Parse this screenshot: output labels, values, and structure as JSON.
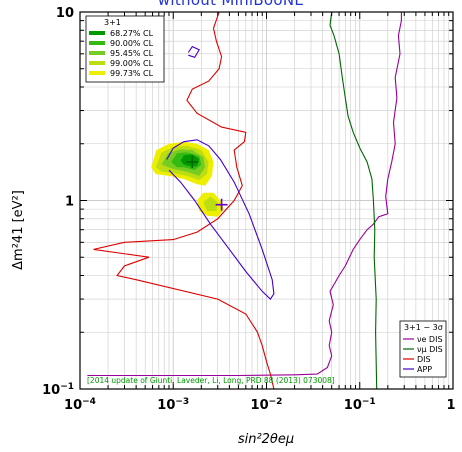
{
  "chart_data": {
    "type": "line",
    "title": "without MiniBooNE",
    "xlabel": "sin²2θeμ",
    "ylabel": "Δm²41 [eV²]",
    "x_scale": "log",
    "y_scale": "log",
    "xlim": [
      0.0001,
      1
    ],
    "ylim": [
      0.1,
      10
    ],
    "grid": true,
    "x_ticks": [
      {
        "value": 0.0001,
        "base": "10",
        "exp": "−4"
      },
      {
        "value": 0.001,
        "base": "10",
        "exp": "−3"
      },
      {
        "value": 0.01,
        "base": "10",
        "exp": "−2"
      },
      {
        "value": 0.1,
        "base": "10",
        "exp": "−1"
      },
      {
        "value": 1,
        "base": "1",
        "exp": ""
      }
    ],
    "y_ticks": [
      {
        "value": 0.1,
        "base": "10",
        "exp": "−1"
      },
      {
        "value": 1,
        "base": "1",
        "exp": ""
      },
      {
        "value": 10,
        "base": "10",
        "exp": ""
      }
    ],
    "fit_legend": {
      "title": "3+1",
      "placement": "top-left",
      "entries": [
        {
          "label": "68.27% CL",
          "color": "#009900"
        },
        {
          "label": "90.00% CL",
          "color": "#33bb11"
        },
        {
          "label": "95.45% CL",
          "color": "#77cc22"
        },
        {
          "label": "99.00% CL",
          "color": "#bbdd11"
        },
        {
          "label": "99.73% CL",
          "color": "#eeee00"
        }
      ]
    },
    "regions": [
      {
        "cl": "99.73% CL",
        "color": "#eeee00",
        "points": [
          [
            0.00058,
            1.5
          ],
          [
            0.00066,
            1.85
          ],
          [
            0.0009,
            2.0
          ],
          [
            0.0013,
            2.05
          ],
          [
            0.0018,
            2.0
          ],
          [
            0.0024,
            1.85
          ],
          [
            0.0027,
            1.6
          ],
          [
            0.0026,
            1.35
          ],
          [
            0.0022,
            1.2
          ],
          [
            0.0018,
            1.22
          ],
          [
            0.0013,
            1.3
          ],
          [
            0.0009,
            1.35
          ],
          [
            0.00065,
            1.38
          ]
        ]
      },
      {
        "cl": "99.73% CL",
        "color": "#eeee00",
        "points": [
          [
            0.0018,
            1.0
          ],
          [
            0.0021,
            1.1
          ],
          [
            0.0027,
            1.1
          ],
          [
            0.0032,
            1.0
          ],
          [
            0.0035,
            0.9
          ],
          [
            0.003,
            0.82
          ],
          [
            0.0023,
            0.83
          ],
          [
            0.0019,
            0.88
          ]
        ]
      },
      {
        "cl": "99.00% CL",
        "color": "#bbdd11",
        "points": [
          [
            0.00065,
            1.5
          ],
          [
            0.00075,
            1.8
          ],
          [
            0.001,
            1.92
          ],
          [
            0.0014,
            1.95
          ],
          [
            0.002,
            1.85
          ],
          [
            0.0024,
            1.6
          ],
          [
            0.0023,
            1.38
          ],
          [
            0.0019,
            1.28
          ],
          [
            0.0014,
            1.35
          ],
          [
            0.001,
            1.4
          ],
          [
            0.00075,
            1.42
          ]
        ]
      },
      {
        "cl": "99.00% CL",
        "color": "#bbdd11",
        "points": [
          [
            0.0021,
            0.98
          ],
          [
            0.0025,
            1.05
          ],
          [
            0.003,
            0.98
          ],
          [
            0.0029,
            0.88
          ],
          [
            0.0023,
            0.88
          ]
        ]
      },
      {
        "cl": "95.45% CL",
        "color": "#77cc22",
        "points": [
          [
            0.00075,
            1.55
          ],
          [
            0.00088,
            1.78
          ],
          [
            0.0012,
            1.87
          ],
          [
            0.0016,
            1.85
          ],
          [
            0.0021,
            1.7
          ],
          [
            0.0022,
            1.5
          ],
          [
            0.0019,
            1.35
          ],
          [
            0.0014,
            1.42
          ],
          [
            0.001,
            1.47
          ]
        ]
      },
      {
        "cl": "90.00% CL",
        "color": "#33bb11",
        "points": [
          [
            0.00095,
            1.6
          ],
          [
            0.0011,
            1.78
          ],
          [
            0.0014,
            1.8
          ],
          [
            0.0019,
            1.72
          ],
          [
            0.002,
            1.55
          ],
          [
            0.0017,
            1.45
          ],
          [
            0.0013,
            1.5
          ],
          [
            0.0011,
            1.5
          ]
        ]
      },
      {
        "cl": "68.27% CL",
        "color": "#009900",
        "points": [
          [
            0.0012,
            1.62
          ],
          [
            0.0013,
            1.74
          ],
          [
            0.0016,
            1.76
          ],
          [
            0.0019,
            1.66
          ],
          [
            0.0018,
            1.52
          ],
          [
            0.0015,
            1.52
          ],
          [
            0.0013,
            1.55
          ]
        ]
      }
    ],
    "best_fits": [
      {
        "x": 0.0016,
        "y": 1.6,
        "color": "#006600"
      },
      {
        "x": 0.0033,
        "y": 0.95,
        "color": "#6600cc"
      }
    ],
    "limit_legend": {
      "title": "3+1 − 3σ",
      "placement": "bottom-right",
      "entries": [
        {
          "label": "νe DIS",
          "color": "#990099"
        },
        {
          "label": "νμ DIS",
          "color": "#006600"
        },
        {
          "label": "DIS",
          "color": "#dd0000"
        },
        {
          "label": "APP",
          "color": "#4400cc"
        }
      ]
    },
    "series": [
      {
        "name": "νe DIS",
        "color": "#990099",
        "points": [
          [
            0.00012,
            0.118
          ],
          [
            0.001,
            0.118
          ],
          [
            0.005,
            0.118
          ],
          [
            0.02,
            0.119
          ],
          [
            0.035,
            0.12
          ],
          [
            0.045,
            0.13
          ],
          [
            0.05,
            0.15
          ],
          [
            0.047,
            0.17
          ],
          [
            0.05,
            0.2
          ],
          [
            0.047,
            0.23
          ],
          [
            0.052,
            0.28
          ],
          [
            0.048,
            0.33
          ],
          [
            0.055,
            0.37
          ],
          [
            0.06,
            0.4
          ],
          [
            0.07,
            0.45
          ],
          [
            0.085,
            0.55
          ],
          [
            0.1,
            0.62
          ],
          [
            0.12,
            0.7
          ],
          [
            0.14,
            0.75
          ],
          [
            0.16,
            0.82
          ],
          [
            0.2,
            0.85
          ],
          [
            0.19,
            1.05
          ],
          [
            0.2,
            1.3
          ],
          [
            0.22,
            1.6
          ],
          [
            0.24,
            2.0
          ],
          [
            0.23,
            2.6
          ],
          [
            0.25,
            3.5
          ],
          [
            0.24,
            4.5
          ],
          [
            0.27,
            6.0
          ],
          [
            0.26,
            7.5
          ],
          [
            0.28,
            9.0
          ],
          [
            0.28,
            10
          ]
        ]
      },
      {
        "name": "νμ DIS",
        "color": "#006600",
        "points": [
          [
            0.05,
            10
          ],
          [
            0.048,
            8.5
          ],
          [
            0.053,
            7.5
          ],
          [
            0.06,
            6.0
          ],
          [
            0.065,
            4.5
          ],
          [
            0.07,
            3.5
          ],
          [
            0.075,
            2.8
          ],
          [
            0.085,
            2.3
          ],
          [
            0.1,
            1.9
          ],
          [
            0.12,
            1.6
          ],
          [
            0.135,
            1.3
          ],
          [
            0.14,
            1.0
          ],
          [
            0.145,
            0.7
          ],
          [
            0.143,
            0.5
          ],
          [
            0.15,
            0.3
          ],
          [
            0.148,
            0.2
          ],
          [
            0.152,
            0.1
          ]
        ]
      },
      {
        "name": "DIS",
        "color": "#dd0000",
        "points": [
          [
            0.0031,
            10
          ],
          [
            0.0027,
            8.2
          ],
          [
            0.0029,
            7.0
          ],
          [
            0.0033,
            5.8
          ],
          [
            0.0031,
            5.0
          ],
          [
            0.0024,
            4.3
          ],
          [
            0.0016,
            3.9
          ],
          [
            0.0014,
            3.4
          ],
          [
            0.0018,
            2.9
          ],
          [
            0.0033,
            2.45
          ],
          [
            0.006,
            2.3
          ],
          [
            0.0058,
            2.05
          ],
          [
            0.0045,
            1.85
          ],
          [
            0.0048,
            1.5
          ],
          [
            0.0055,
            1.2
          ],
          [
            0.0045,
            1.0
          ],
          [
            0.003,
            0.8
          ],
          [
            0.0018,
            0.68
          ],
          [
            0.001,
            0.62
          ],
          [
            0.0003,
            0.6
          ],
          [
            0.00014,
            0.55
          ],
          [
            0.00055,
            0.5
          ],
          [
            0.0003,
            0.45
          ],
          [
            0.00025,
            0.4
          ],
          [
            0.0004,
            0.38
          ],
          [
            0.003,
            0.3
          ],
          [
            0.006,
            0.25
          ],
          [
            0.008,
            0.2
          ],
          [
            0.009,
            0.17
          ],
          [
            0.01,
            0.14
          ],
          [
            0.011,
            0.12
          ],
          [
            0.012,
            0.1
          ]
        ]
      },
      {
        "name": "APP",
        "color": "#4400cc",
        "points": [
          [
            0.00085,
            1.65
          ],
          [
            0.001,
            1.9
          ],
          [
            0.0013,
            2.05
          ],
          [
            0.0018,
            2.1
          ],
          [
            0.0024,
            1.95
          ],
          [
            0.0032,
            1.65
          ],
          [
            0.0045,
            1.25
          ],
          [
            0.0065,
            0.85
          ],
          [
            0.009,
            0.55
          ],
          [
            0.0115,
            0.38
          ],
          [
            0.012,
            0.32
          ],
          [
            0.011,
            0.3
          ],
          [
            0.009,
            0.33
          ],
          [
            0.006,
            0.42
          ],
          [
            0.004,
            0.55
          ],
          [
            0.0025,
            0.75
          ],
          [
            0.0017,
            1.0
          ],
          [
            0.0012,
            1.25
          ],
          [
            0.0009,
            1.45
          ]
        ]
      },
      {
        "name": "APP",
        "color": "#4400cc",
        "points": [
          [
            0.00145,
            6.1
          ],
          [
            0.0016,
            6.55
          ],
          [
            0.0019,
            6.3
          ],
          [
            0.0017,
            5.75
          ],
          [
            0.00145,
            5.9
          ]
        ]
      }
    ],
    "annotation": "[2014 update of Giunti, Laveder, Li, Long, PRD 88 (2013) 073008]",
    "annotation_color": "#009900"
  }
}
